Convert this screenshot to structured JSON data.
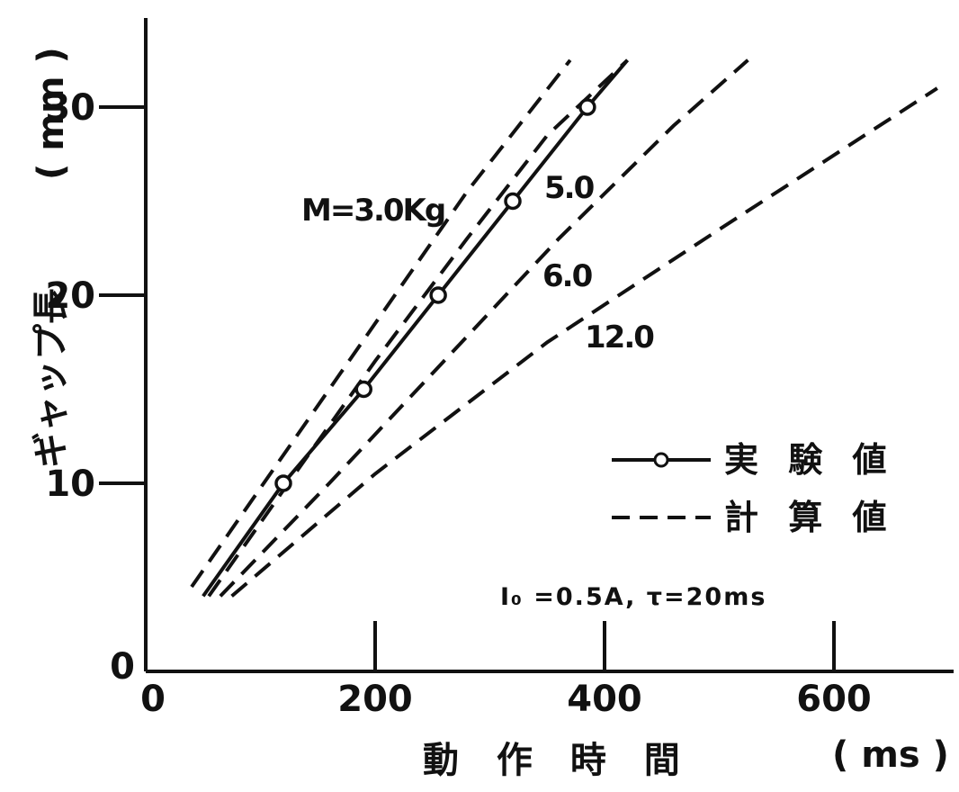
{
  "chart_data": {
    "type": "line",
    "xlabel": "動 作 時 間",
    "xunit": "( ms )",
    "ylabel": "ギャップ長",
    "yunit": "( mm )",
    "xlim": [
      0,
      700
    ],
    "ylim": [
      0,
      35
    ],
    "x_ticks": [
      0,
      200,
      400,
      600
    ],
    "x_tick_labels": [
      "0",
      "200",
      "400",
      "600"
    ],
    "y_ticks": [
      0,
      10,
      20,
      30
    ],
    "y_tick_labels": [
      "0",
      "10",
      "20",
      "30"
    ],
    "grid": false,
    "legend": {
      "placement": "right",
      "entries": [
        {
          "label": "実 験 値",
          "style": "solid-marker"
        },
        {
          "label": "計 算 値",
          "style": "dashed"
        }
      ]
    },
    "annotation": "I₀ =0.5A, τ=20ms",
    "series": [
      {
        "name": "実験値",
        "label": "5.0",
        "style": "solid",
        "marker": "circle",
        "x": [
          50,
          120,
          190,
          255,
          320,
          385,
          420
        ],
        "y": [
          4,
          10,
          15,
          20,
          25,
          30,
          32.5
        ],
        "marker_idx": [
          1,
          2,
          3,
          4,
          5
        ]
      },
      {
        "name": "M=3.0Kg",
        "label": "M=3.0Kg",
        "style": "dashed",
        "x": [
          40,
          120,
          200,
          280,
          370
        ],
        "y": [
          4.5,
          11.5,
          18.5,
          25.5,
          32.5
        ]
      },
      {
        "name": "計算値 5.0",
        "label": "",
        "style": "dashed",
        "x": [
          55,
          130,
          200,
          280,
          350,
          420
        ],
        "y": [
          4,
          10.5,
          16.5,
          23,
          28.5,
          32.5
        ]
      },
      {
        "name": "6.0",
        "label": "6.0",
        "style": "dashed",
        "x": [
          65,
          160,
          260,
          360,
          460,
          525
        ],
        "y": [
          4,
          10,
          16.5,
          23,
          29,
          32.5
        ]
      },
      {
        "name": "12.0",
        "label": "12.0",
        "style": "dashed",
        "x": [
          75,
          200,
          350,
          500,
          690
        ],
        "y": [
          4,
          10.5,
          17.5,
          23.5,
          31
        ]
      }
    ]
  }
}
